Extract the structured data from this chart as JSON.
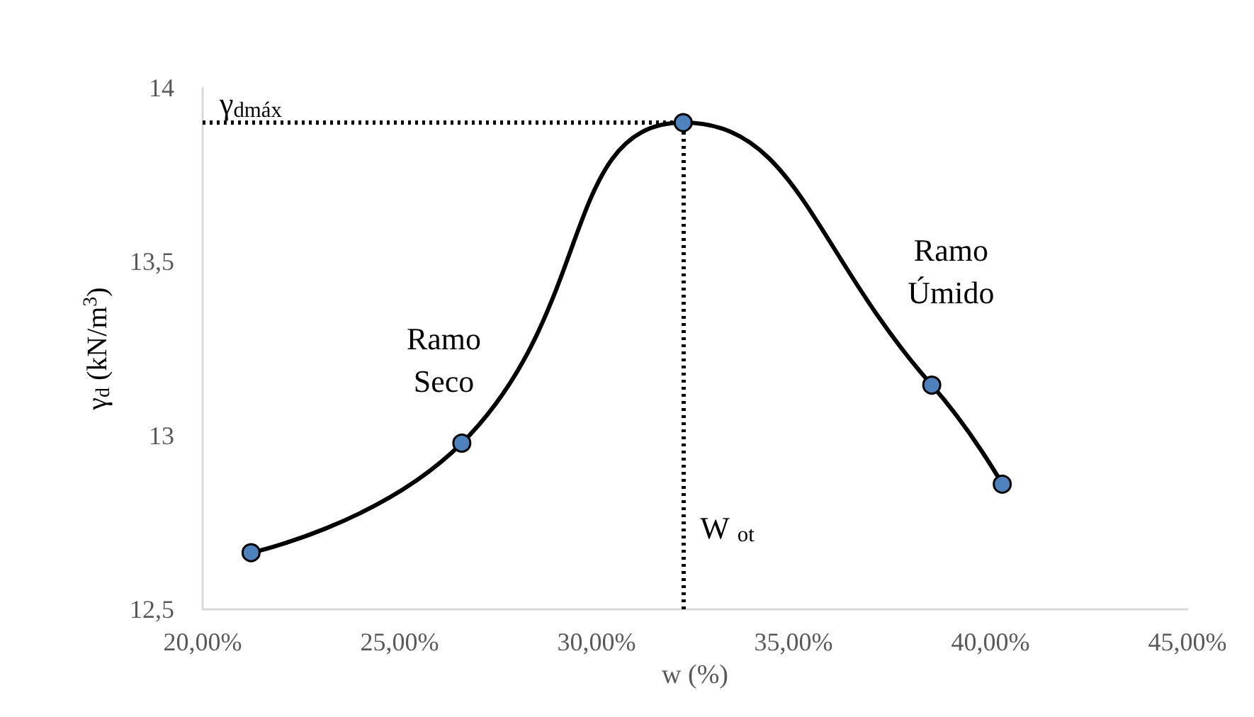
{
  "chart_data": {
    "type": "line",
    "xlabel": "w (%)",
    "ylabel": "γ$_{d}$ (kN/m$^{3}$)",
    "x": [
      21.23,
      26.58,
      32.2,
      38.51,
      40.3
    ],
    "series": [
      {
        "color": "#4f81bd",
        "values": [
          12.663,
          12.978,
          13.9,
          13.145,
          12.86
        ]
      }
    ],
    "xlim": [
      20,
      45
    ],
    "xticks": [
      {
        "value": 20,
        "label": "20,00%"
      },
      {
        "value": 25,
        "label": "25,00%"
      },
      {
        "value": 30,
        "label": "30,00%"
      },
      {
        "value": 35,
        "label": "35,00%"
      },
      {
        "value": 40,
        "label": "40,00%"
      },
      {
        "value": 45,
        "label": "45,00%"
      }
    ],
    "ylim": [
      12.5,
      14
    ],
    "yticks": [
      {
        "value": 12.5,
        "label": "12,5"
      },
      {
        "value": 13,
        "label": "13"
      },
      {
        "value": 13.5,
        "label": "13,5"
      },
      {
        "value": 14,
        "label": "14"
      }
    ],
    "ref_lines": [
      {
        "axis": "y",
        "value": 13.9,
        "label": "γ$_{dmáx}$",
        "line_style": "dotted",
        "color": "#000000"
      },
      {
        "axis": "x",
        "value": 32.2,
        "label": "W $_{ot}$",
        "line_style": "dotted",
        "color": "#000000"
      }
    ],
    "annotations": [
      "Ramo\nSeco",
      "Ramo\nÚmido"
    ],
    "grid": false,
    "marker": "circle",
    "line_style": "solid"
  }
}
